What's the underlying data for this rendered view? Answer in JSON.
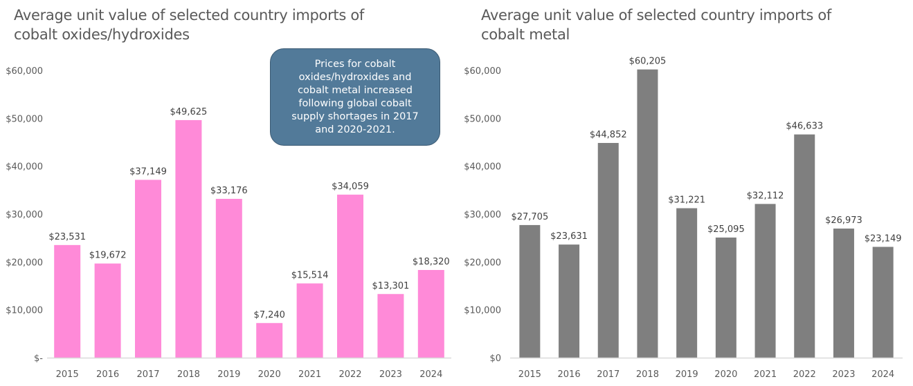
{
  "chart_data": [
    {
      "type": "bar",
      "title": "Average unit value of selected country imports of cobalt oxides/hydroxides",
      "xlabel": "",
      "ylabel": "",
      "categories": [
        "2015",
        "2016",
        "2017",
        "2018",
        "2019",
        "2020",
        "2021",
        "2022",
        "2023",
        "2024"
      ],
      "values": [
        23531,
        19672,
        37149,
        49625,
        33176,
        7240,
        15514,
        34059,
        13301,
        18320
      ],
      "data_labels": [
        "$23,531",
        "$19,672",
        "$37,149",
        "$49,625",
        "$33,176",
        "$7,240",
        "$15,514",
        "$34,059",
        "$13,301",
        "$18,320"
      ],
      "ylim": [
        0,
        60000
      ],
      "yticks": [
        0,
        10000,
        20000,
        30000,
        40000,
        50000,
        60000
      ],
      "ytick_labels": [
        "$-",
        "$10,000",
        "$20,000",
        "$30,000",
        "$40,000",
        "$50,000",
        "$60,000"
      ],
      "bar_color": "#ff8ad8",
      "grid": false,
      "legend": "none",
      "annotation": "Prices for cobalt oxides/hydroxides and cobalt metal increased following global cobalt supply shortages in 2017 and 2020-2021."
    },
    {
      "type": "bar",
      "title": "Average unit value of selected country imports of cobalt metal",
      "xlabel": "",
      "ylabel": "",
      "categories": [
        "2015",
        "2016",
        "2017",
        "2018",
        "2019",
        "2020",
        "2021",
        "2022",
        "2023",
        "2024"
      ],
      "values": [
        27705,
        23631,
        44852,
        60205,
        31221,
        25095,
        32112,
        46633,
        26973,
        23149
      ],
      "data_labels": [
        "$27,705",
        "$23,631",
        "$44,852",
        "$60,205",
        "$31,221",
        "$25,095",
        "$32,112",
        "$46,633",
        "$26,973",
        "$23,149"
      ],
      "ylim": [
        0,
        60000
      ],
      "yticks": [
        0,
        10000,
        20000,
        30000,
        40000,
        50000,
        60000
      ],
      "ytick_labels": [
        "$0",
        "$10,000",
        "$20,000",
        "$30,000",
        "$40,000",
        "$50,000",
        "$60,000"
      ],
      "bar_color": "#7f7f7f",
      "grid": false,
      "legend": "none"
    }
  ],
  "colors": {
    "axis_line": "#d9d9d9",
    "callout_fill": "#527a99",
    "callout_text": "#ffffff"
  }
}
